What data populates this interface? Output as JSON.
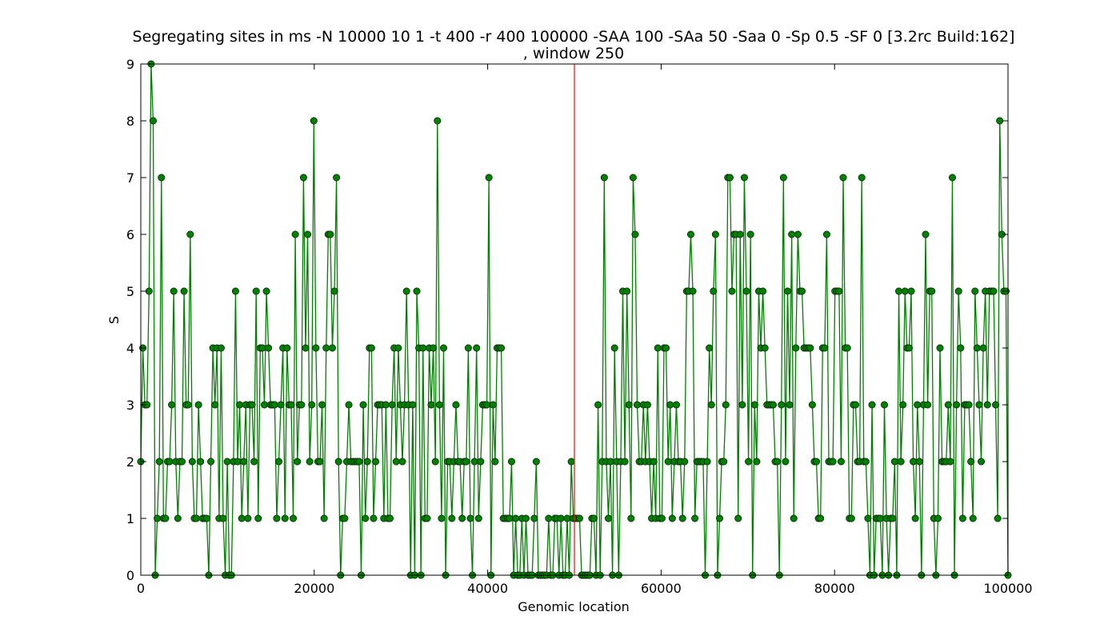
{
  "chart_data": {
    "type": "line",
    "title": "Segregating sites in ms -N 10000 10 1 -t 400 -r 400 100000 -SAA 100 -SAa 50 -Saa 0 -Sp 0.5 -SF 0  [3.2rc Build:162]",
    "subtitle": ", window 250",
    "xlabel": "Genomic location",
    "ylabel": "S",
    "xlim": [
      0,
      100000
    ],
    "ylim": [
      0,
      9
    ],
    "xticks": [
      "0",
      "20000",
      "40000",
      "60000",
      "80000",
      "100000"
    ],
    "yticks": [
      "0",
      "1",
      "2",
      "3",
      "4",
      "5",
      "6",
      "7",
      "8",
      "9"
    ],
    "grid": false,
    "marker": "circle",
    "series_color": "#008000",
    "marker_edge_color": "#000000",
    "vline": {
      "x": 50000,
      "color": "#ff0000"
    },
    "series": [
      {
        "window": 250,
        "values": [
          2,
          4,
          3,
          3,
          5,
          9,
          8,
          0,
          1,
          2,
          7,
          1,
          1,
          2,
          2,
          3,
          5,
          2,
          1,
          2,
          2,
          5,
          3,
          3,
          6,
          2,
          1,
          1,
          3,
          2,
          1,
          1,
          1,
          0,
          2,
          4,
          3,
          4,
          1,
          4,
          1,
          0,
          2,
          0,
          0,
          2,
          5,
          2,
          3,
          1,
          2,
          3,
          1,
          3,
          3,
          2,
          5,
          1,
          4,
          4,
          3,
          5,
          4,
          3,
          3,
          3,
          1,
          2,
          3,
          4,
          1,
          4,
          3,
          3,
          1,
          6,
          2,
          3,
          3,
          7,
          4,
          6,
          2,
          3,
          8,
          4,
          2,
          2,
          3,
          1,
          4,
          6,
          6,
          4,
          5,
          7,
          2,
          0,
          1,
          1,
          2,
          3,
          2,
          2,
          2,
          2,
          2,
          0,
          3,
          1,
          2,
          4,
          4,
          1,
          2,
          3,
          3,
          3,
          1,
          3,
          1,
          1,
          3,
          4,
          2,
          4,
          3,
          2,
          3,
          5,
          3,
          0,
          3,
          0,
          5,
          4,
          0,
          4,
          1,
          1,
          4,
          3,
          4,
          2,
          8,
          3,
          1,
          4,
          0,
          2,
          2,
          1,
          2,
          3,
          2,
          2,
          1,
          2,
          2,
          4,
          1,
          0,
          2,
          4,
          1,
          2,
          3,
          3,
          3,
          7,
          0,
          3,
          2,
          4,
          4,
          4,
          1,
          1,
          1,
          1,
          2,
          0,
          1,
          0,
          0,
          1,
          0,
          1,
          0,
          0,
          0,
          1,
          2,
          0,
          0,
          0,
          0,
          0,
          1,
          0,
          0,
          1,
          1,
          0,
          1,
          0,
          0,
          1,
          0,
          2,
          1,
          1,
          1,
          1,
          0,
          0,
          0,
          0,
          0,
          1,
          1,
          0,
          3,
          0,
          2,
          7,
          2,
          1,
          2,
          0,
          4,
          2,
          0,
          2,
          5,
          2,
          5,
          3,
          1,
          7,
          6,
          3,
          2,
          2,
          3,
          2,
          3,
          2,
          1,
          2,
          1,
          4,
          1,
          1,
          4,
          4,
          2,
          3,
          1,
          2,
          3,
          2,
          2,
          1,
          2,
          5,
          5,
          6,
          5,
          1,
          2,
          2,
          2,
          2,
          0,
          2,
          4,
          3,
          5,
          6,
          0,
          1,
          2,
          2,
          3,
          7,
          7,
          5,
          6,
          6,
          1,
          6,
          3,
          7,
          5,
          2,
          6,
          0,
          3,
          2,
          5,
          4,
          5,
          4,
          3,
          3,
          3,
          3,
          2,
          2,
          0,
          3,
          7,
          2,
          5,
          3,
          6,
          1,
          4,
          6,
          5,
          5,
          4,
          4,
          4,
          4,
          3,
          2,
          2,
          1,
          1,
          4,
          4,
          6,
          2,
          2,
          2,
          5,
          5,
          5,
          2,
          7,
          4,
          4,
          1,
          1,
          3,
          3,
          2,
          2,
          7,
          2,
          2,
          1,
          0,
          3,
          0,
          1,
          1,
          1,
          0,
          3,
          1,
          0,
          1,
          1,
          2,
          0,
          5,
          2,
          3,
          5,
          4,
          4,
          5,
          2,
          1,
          3,
          2,
          0,
          3,
          6,
          3,
          5,
          5,
          1,
          0,
          1,
          4,
          2,
          2,
          2,
          3,
          2,
          7,
          0,
          3,
          5,
          4,
          1,
          3,
          3,
          3,
          2,
          1,
          5,
          4,
          3,
          2,
          4,
          5,
          3,
          5,
          5,
          5,
          3,
          1,
          8,
          6,
          5,
          5,
          0
        ]
      }
    ]
  }
}
